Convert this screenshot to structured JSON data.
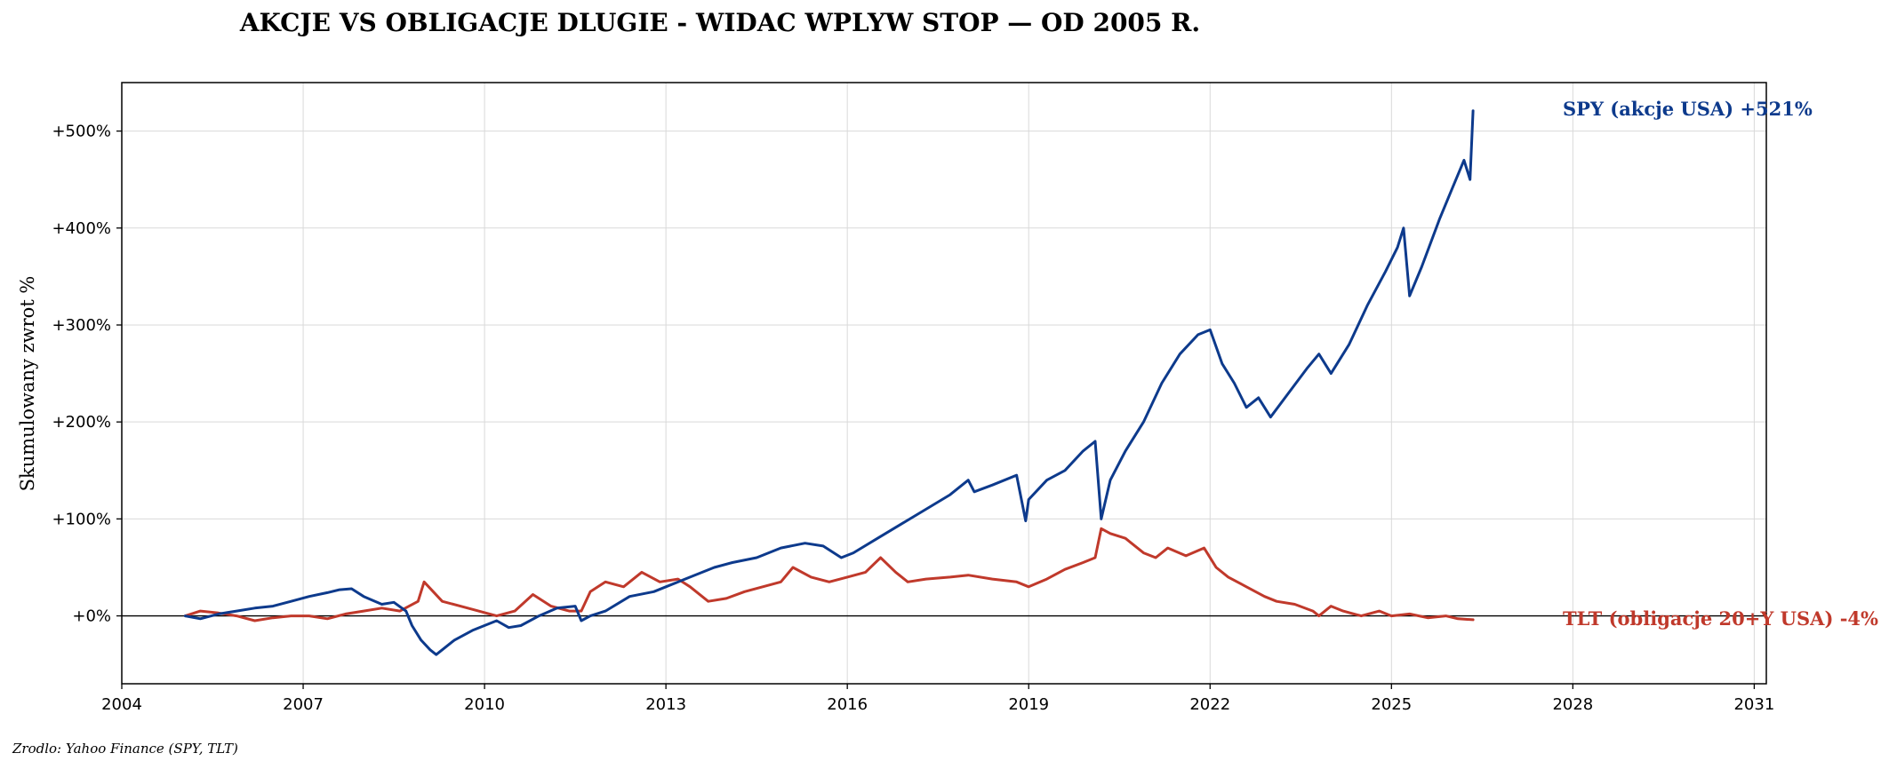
{
  "chart_data": {
    "type": "line",
    "title": "AKCJE VS OBLIGACJE DLUGIE - WIDAC WPLYW STOP — OD 2005 R.",
    "xlabel": "",
    "ylabel": "Skumulowany zwrot %",
    "xlim": [
      2004.0,
      2031.2
    ],
    "ylim": [
      -70,
      550
    ],
    "x_ticks": [
      2004,
      2007,
      2010,
      2013,
      2016,
      2019,
      2022,
      2025,
      2028,
      2031
    ],
    "x_tick_labels": [
      "2004",
      "2007",
      "2010",
      "2013",
      "2016",
      "2019",
      "2022",
      "2025",
      "2028",
      "2031"
    ],
    "y_ticks": [
      0,
      100,
      200,
      300,
      400,
      500
    ],
    "y_tick_labels": [
      "+0%",
      "+100%",
      "+200%",
      "+300%",
      "+400%",
      "+500%"
    ],
    "grid": true,
    "zero_line": true,
    "series": [
      {
        "name": "SPY (akcje USA)",
        "label": "SPY (akcje USA)  +521%",
        "color": "#0d3a8c",
        "x": [
          2005.05,
          2005.3,
          2005.6,
          2005.9,
          2006.2,
          2006.5,
          2006.8,
          2007.1,
          2007.4,
          2007.6,
          2007.8,
          2008.0,
          2008.3,
          2008.5,
          2008.7,
          2008.8,
          2008.95,
          2009.1,
          2009.2,
          2009.5,
          2009.8,
          2010.2,
          2010.4,
          2010.6,
          2010.9,
          2011.2,
          2011.5,
          2011.6,
          2011.75,
          2012.0,
          2012.4,
          2012.8,
          2013.0,
          2013.4,
          2013.8,
          2014.1,
          2014.5,
          2014.9,
          2015.3,
          2015.6,
          2015.9,
          2016.1,
          2016.5,
          2016.9,
          2017.3,
          2017.7,
          2018.0,
          2018.1,
          2018.4,
          2018.8,
          2018.95,
          2019.0,
          2019.3,
          2019.6,
          2019.9,
          2020.1,
          2020.2,
          2020.35,
          2020.6,
          2020.9,
          2021.2,
          2021.5,
          2021.8,
          2022.0,
          2022.2,
          2022.4,
          2022.6,
          2022.8,
          2023.0,
          2023.3,
          2023.6,
          2023.8,
          2024.0,
          2024.3,
          2024.6,
          2024.9,
          2025.1,
          2025.2,
          2025.3,
          2025.5,
          2025.8,
          2026.0,
          2026.2,
          2026.3,
          2026.35
        ],
        "y": [
          0,
          -3,
          2,
          5,
          8,
          10,
          15,
          20,
          24,
          27,
          28,
          20,
          12,
          14,
          5,
          -10,
          -25,
          -35,
          -40,
          -25,
          -15,
          -5,
          -12,
          -10,
          0,
          8,
          10,
          -5,
          0,
          5,
          20,
          25,
          30,
          40,
          50,
          55,
          60,
          70,
          75,
          72,
          60,
          65,
          80,
          95,
          110,
          125,
          140,
          128,
          135,
          145,
          98,
          120,
          140,
          150,
          170,
          180,
          100,
          140,
          170,
          200,
          240,
          270,
          290,
          295,
          260,
          240,
          215,
          225,
          205,
          230,
          255,
          270,
          250,
          280,
          320,
          355,
          380,
          400,
          330,
          360,
          410,
          440,
          470,
          450,
          521
        ]
      },
      {
        "name": "TLT (obligacje 20+Y USA)",
        "label": "TLT (obligacje 20+Y USA)  -4%",
        "color": "#c0392b",
        "x": [
          2005.05,
          2005.3,
          2005.6,
          2005.9,
          2006.2,
          2006.5,
          2006.8,
          2007.1,
          2007.4,
          2007.7,
          2008.0,
          2008.3,
          2008.6,
          2008.9,
          2009.0,
          2009.3,
          2009.6,
          2009.9,
          2010.2,
          2010.5,
          2010.8,
          2011.1,
          2011.4,
          2011.6,
          2011.75,
          2012.0,
          2012.3,
          2012.6,
          2012.9,
          2013.2,
          2013.4,
          2013.7,
          2014.0,
          2014.3,
          2014.6,
          2014.9,
          2015.1,
          2015.4,
          2015.7,
          2016.0,
          2016.3,
          2016.55,
          2016.8,
          2017.0,
          2017.3,
          2017.7,
          2018.0,
          2018.4,
          2018.8,
          2019.0,
          2019.3,
          2019.6,
          2019.9,
          2020.1,
          2020.2,
          2020.35,
          2020.6,
          2020.9,
          2021.1,
          2021.3,
          2021.6,
          2021.9,
          2022.1,
          2022.3,
          2022.6,
          2022.9,
          2023.1,
          2023.4,
          2023.7,
          2023.8,
          2024.0,
          2024.2,
          2024.5,
          2024.8,
          2025.0,
          2025.3,
          2025.6,
          2025.9,
          2026.1,
          2026.35
        ],
        "y": [
          0,
          5,
          3,
          0,
          -5,
          -2,
          0,
          0,
          -3,
          2,
          5,
          8,
          5,
          15,
          35,
          15,
          10,
          5,
          0,
          5,
          22,
          10,
          5,
          5,
          25,
          35,
          30,
          45,
          35,
          38,
          30,
          15,
          18,
          25,
          30,
          35,
          50,
          40,
          35,
          40,
          45,
          60,
          45,
          35,
          38,
          40,
          42,
          38,
          35,
          30,
          38,
          48,
          55,
          60,
          90,
          85,
          80,
          65,
          60,
          70,
          62,
          70,
          50,
          40,
          30,
          20,
          15,
          12,
          5,
          0,
          10,
          5,
          0,
          5,
          0,
          2,
          -2,
          0,
          -3,
          -4
        ]
      }
    ],
    "annotations": [
      "SPY (akcje USA)  +521%",
      "TLT (obligacje 20+Y USA)  -4%"
    ]
  },
  "source_note": "Zrodlo: Yahoo Finance (SPY, TLT)"
}
